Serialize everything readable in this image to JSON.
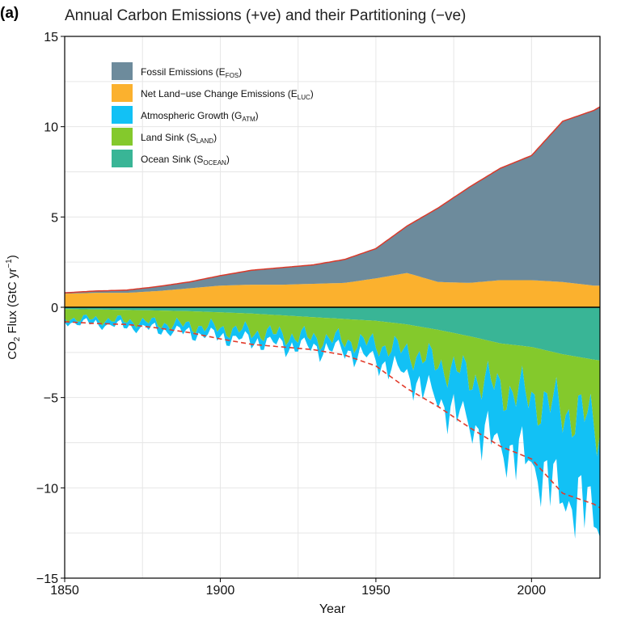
{
  "chart_data": {
    "type": "area",
    "panel_label": "(a)",
    "title": "Annual Carbon Emissions (+ve) and their Partitioning (−ve)",
    "xlabel": "Year",
    "ylabel": "CO",
    "ylabel_sub": "2",
    "ylabel_rest": " Flux (GtC yr",
    "ylabel_sup": "−1",
    "ylabel_end": ")",
    "xlim": [
      1850,
      2022
    ],
    "ylim": [
      -15,
      15
    ],
    "x_ticks": [
      1850,
      1900,
      1950,
      2000
    ],
    "y_ticks": [
      -15,
      -10,
      -5,
      0,
      5,
      10,
      15
    ],
    "y_tick_labels": [
      "−15",
      "−10",
      "−5",
      "0",
      "5",
      "10",
      "15"
    ],
    "grid": true,
    "legend_position": "top-left",
    "legend": [
      {
        "name": "Fossil Emissions (E",
        "sub": "FOS",
        "tail": ")",
        "color": "#6d8b9c"
      },
      {
        "name": "Net Land−use Change Emissions (E",
        "sub": "LUC",
        "tail": ")",
        "color": "#fbb12e"
      },
      {
        "name": "Atmospheric Growth (G",
        "sub": "ATM",
        "tail": ")",
        "color": "#12c1f5"
      },
      {
        "name": "Land Sink (S",
        "sub": "LAND",
        "tail": ")",
        "color": "#84c92c"
      },
      {
        "name": "Ocean Sink (S",
        "sub": "OCEAN",
        "tail": ")",
        "color": "#39b596"
      }
    ],
    "emissions_keypoints": {
      "years": [
        1850,
        1860,
        1870,
        1880,
        1890,
        1900,
        1910,
        1920,
        1930,
        1940,
        1950,
        1960,
        1970,
        1980,
        1990,
        2000,
        2010,
        2020,
        2022
      ],
      "fossil": [
        0.05,
        0.1,
        0.15,
        0.25,
        0.35,
        0.55,
        0.8,
        0.95,
        1.05,
        1.3,
        1.65,
        2.6,
        4.1,
        5.3,
        6.2,
        6.9,
        8.9,
        9.7,
        9.9
      ],
      "land_use": [
        0.75,
        0.8,
        0.8,
        0.9,
        1.05,
        1.2,
        1.25,
        1.25,
        1.3,
        1.35,
        1.6,
        1.9,
        1.4,
        1.35,
        1.5,
        1.5,
        1.4,
        1.2,
        1.2
      ]
    },
    "sinks_keypoints": {
      "years": [
        1850,
        1860,
        1870,
        1880,
        1890,
        1900,
        1910,
        1920,
        1930,
        1940,
        1950,
        1960,
        1970,
        1980,
        1990,
        2000,
        2010,
        2020,
        2022
      ],
      "ocean": [
        -0.1,
        -0.12,
        -0.15,
        -0.18,
        -0.22,
        -0.28,
        -0.35,
        -0.45,
        -0.55,
        -0.65,
        -0.75,
        -0.95,
        -1.25,
        -1.6,
        -2.0,
        -2.2,
        -2.6,
        -2.9,
        -2.95
      ],
      "land": [
        -0.5,
        -0.55,
        -0.6,
        -0.7,
        -0.8,
        -0.9,
        -1.0,
        -1.1,
        -1.15,
        -1.2,
        -1.3,
        -1.5,
        -1.9,
        -2.2,
        -2.5,
        -2.8,
        -3.1,
        -3.4,
        -3.5
      ],
      "atmosphere": [
        -0.2,
        -0.25,
        -0.3,
        -0.35,
        -0.4,
        -0.45,
        -0.5,
        -0.55,
        -0.55,
        -0.55,
        -0.9,
        -1.3,
        -2.0,
        -2.6,
        -3.2,
        -3.6,
        -4.8,
        -5.0,
        -5.0
      ]
    }
  }
}
